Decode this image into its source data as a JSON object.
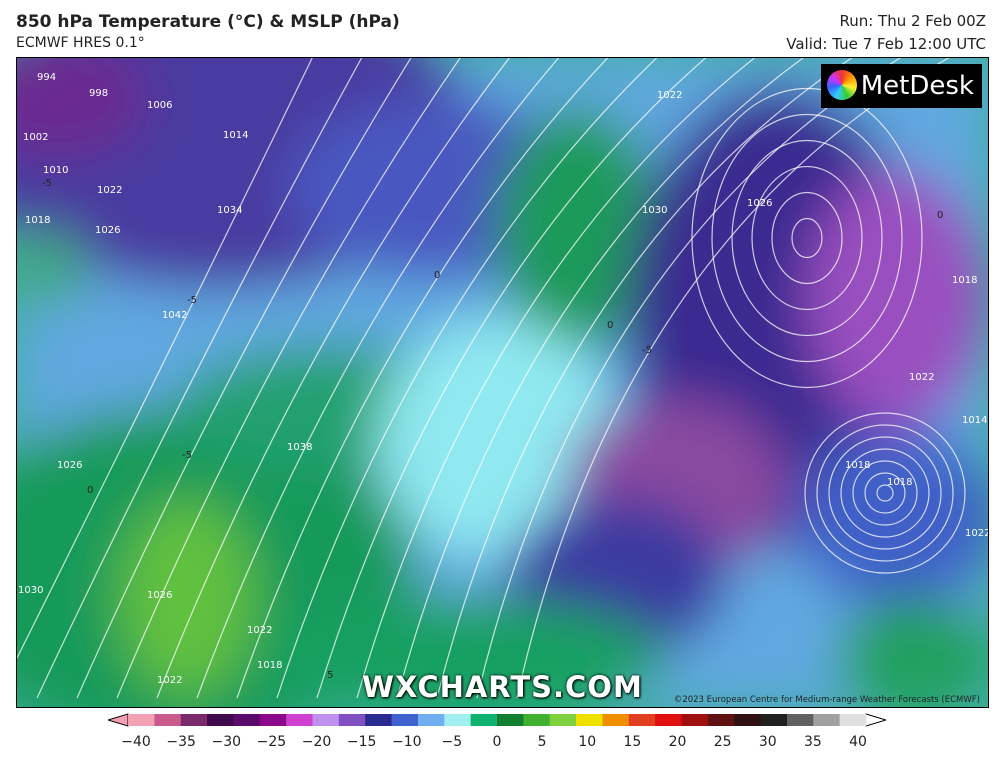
{
  "header": {
    "title": "850 hPa Temperature (°C) & MSLP (hPa)",
    "model": "ECMWF HRES 0.1°",
    "run": "Run: Thu 2 Feb 00Z",
    "valid": "Valid: Tue 7 Feb 12:00 UTC"
  },
  "logo": {
    "text": "MetDesk"
  },
  "watermark": "WXCHARTS.COM",
  "copyright": "©2023 European Centre for Medium-range Weather Forecasts (ECMWF)",
  "isobar_labels": [
    "994",
    "998",
    "1002",
    "1006",
    "1010",
    "1014",
    "1018",
    "1022",
    "1026",
    "1034",
    "1042",
    "1038",
    "1030",
    "1026",
    "1022",
    "1018",
    "1022",
    "1022",
    "1030",
    "1026",
    "1018",
    "1022",
    "1014",
    "1018",
    "1018",
    "1022",
    "1026"
  ],
  "temperature_labels": [
    "-5",
    "-5",
    "0",
    "-5",
    "0",
    "-5",
    "0",
    "5",
    "0"
  ],
  "colorbar": {
    "unit": "°C",
    "ticks": [
      "−40",
      "−35",
      "−30",
      "−25",
      "−20",
      "−15",
      "−10",
      "−5",
      "0",
      "5",
      "10",
      "15",
      "20",
      "25",
      "30",
      "35",
      "40"
    ],
    "colors": [
      "#f4a0b4",
      "#c85a8c",
      "#7a2a6a",
      "#3e0a4a",
      "#5a0a6a",
      "#8a0a8a",
      "#d040d0",
      "#c090f0",
      "#8050c0",
      "#2a2a90",
      "#4060d0",
      "#70b0f0",
      "#a0f0f0",
      "#10b070",
      "#108030",
      "#40b030",
      "#80d040",
      "#f0e000",
      "#f09000",
      "#e04020",
      "#e01010",
      "#a01010",
      "#601010",
      "#301010",
      "#202020",
      "#606060",
      "#a0a0a0",
      "#e0e0e0"
    ]
  }
}
